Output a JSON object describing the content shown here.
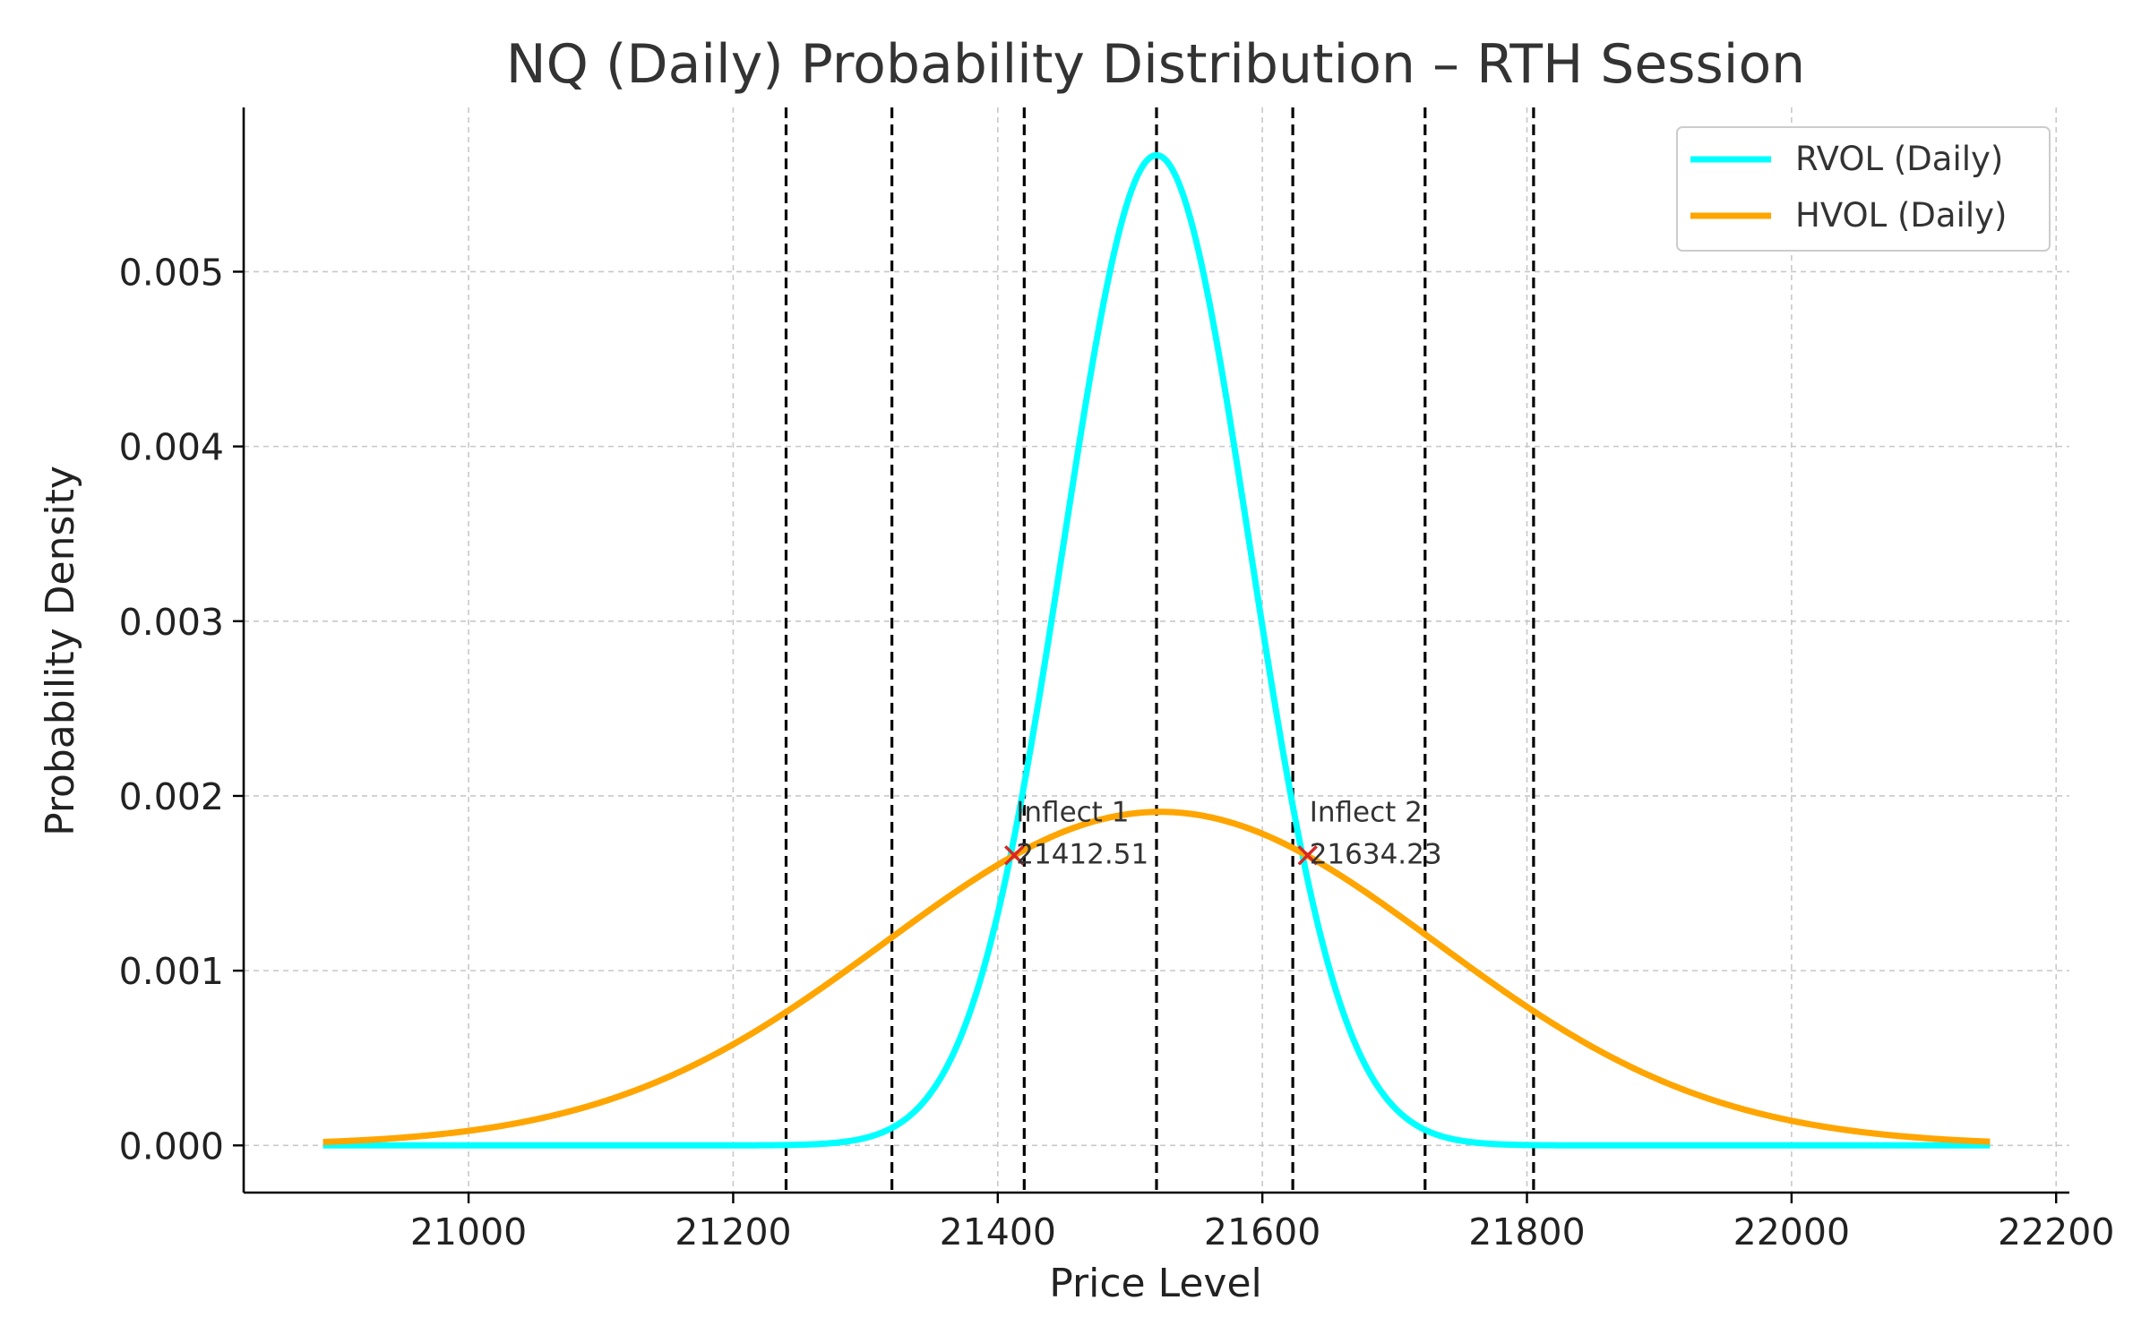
{
  "chart_data": {
    "type": "line",
    "title": "NQ (Daily) Probability Distribution – RTH Session",
    "xlabel": "Price Level",
    "ylabel": "Probability Density",
    "xlim": [
      20830,
      22210
    ],
    "ylim": [
      -0.00027,
      0.00594
    ],
    "x_ticks": [
      21000,
      21200,
      21400,
      21600,
      21800,
      22000,
      22200
    ],
    "x_tick_labels": [
      "21000",
      "21200",
      "21400",
      "21600",
      "21800",
      "22000",
      "22200"
    ],
    "y_ticks": [
      0.0,
      0.001,
      0.002,
      0.003,
      0.004,
      0.005
    ],
    "y_tick_labels": [
      "0.000",
      "0.001",
      "0.002",
      "0.003",
      "0.004",
      "0.005"
    ],
    "grid": true,
    "legend_position": "top-right",
    "series": [
      {
        "name": "RVOL (Daily)",
        "color": "#00ffff",
        "distribution": "normal",
        "mean": 21520,
        "std": 70.4,
        "x_range": [
          20890,
          22150
        ]
      },
      {
        "name": "HVOL (Daily)",
        "color": "#ffa500",
        "distribution": "normal",
        "mean": 21523,
        "std": 209,
        "x_range": [
          20890,
          22150
        ]
      }
    ],
    "vertical_lines": [
      21240,
      21320,
      21420,
      21520,
      21623,
      21723,
      21805
    ],
    "vertical_line_color": "#000000",
    "annotations": [
      {
        "label": "Inflect 1",
        "value": "21412.51",
        "x": 21412.51,
        "y": 0.00166,
        "marker_color": "#d62728"
      },
      {
        "label": "Inflect 2",
        "value": "21634.23",
        "x": 21634.23,
        "y": 0.00166,
        "marker_color": "#d62728"
      }
    ]
  }
}
